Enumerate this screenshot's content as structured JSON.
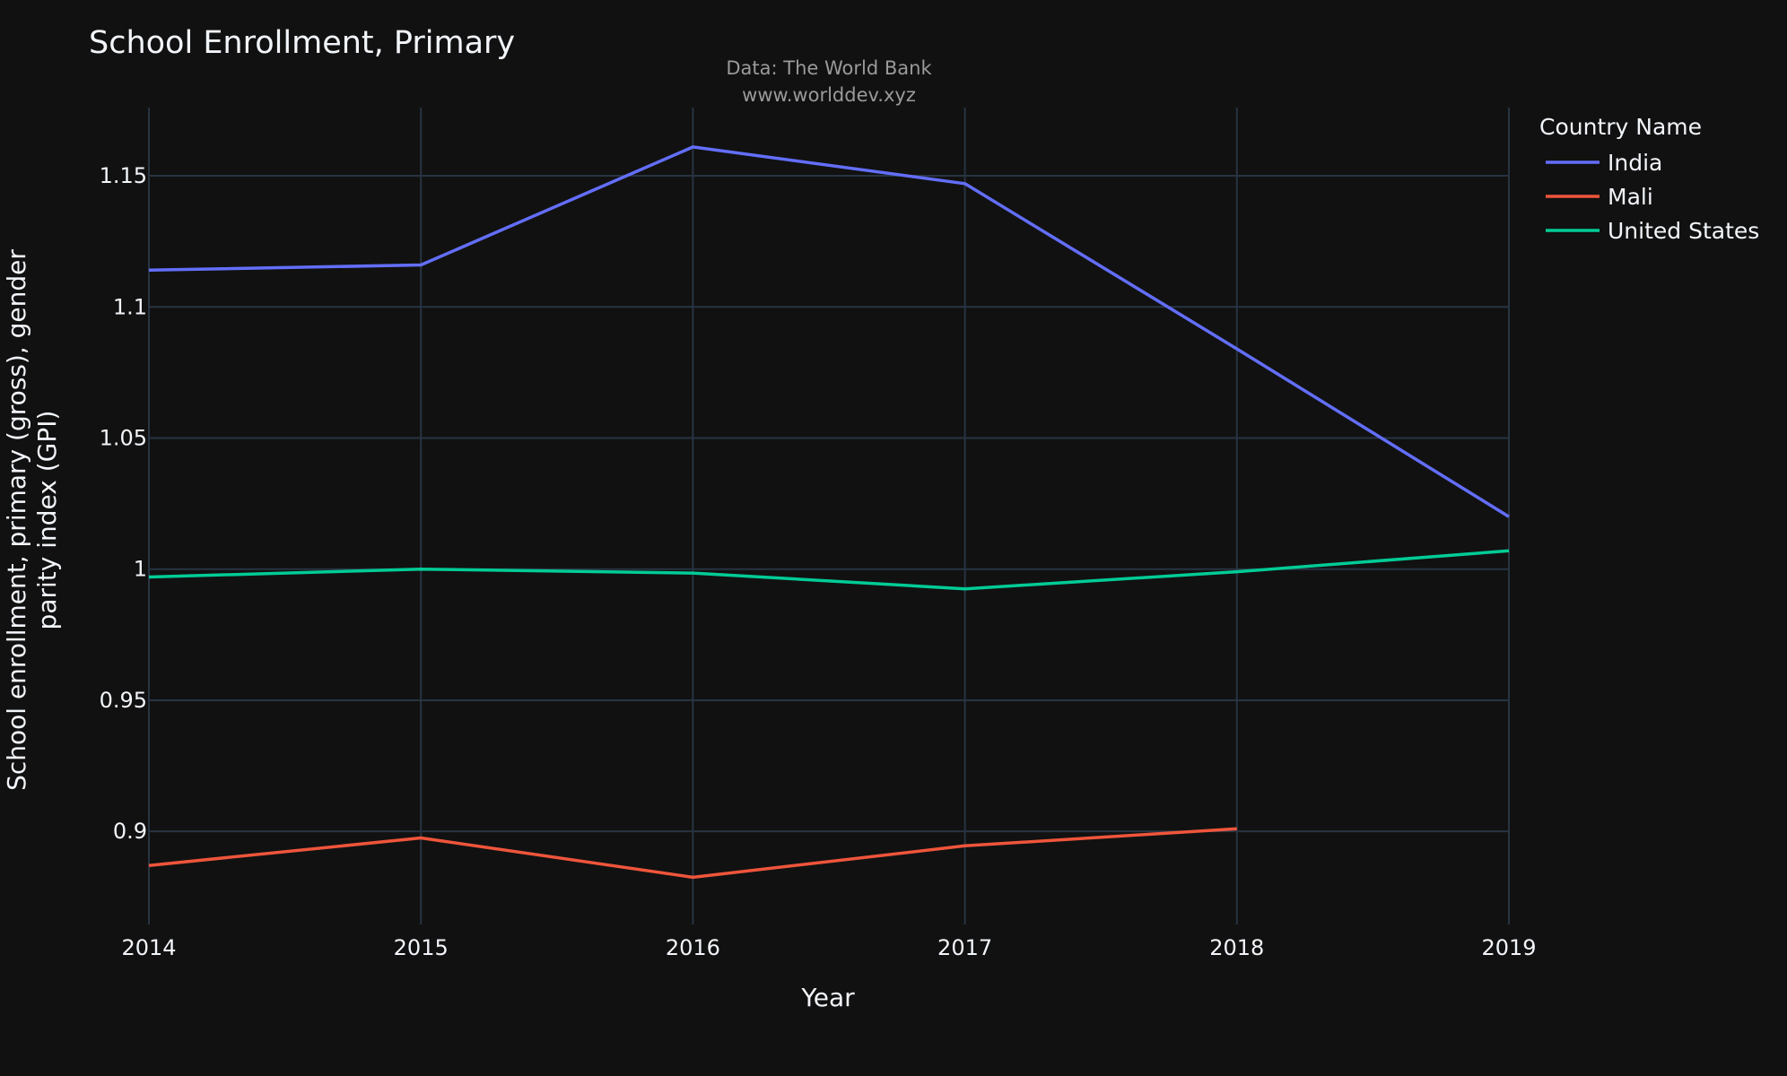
{
  "chart_data": {
    "type": "line",
    "title": "School Enrollment, Primary",
    "subtitle_lines": [
      "Data: The World Bank",
      "www.worlddev.xyz"
    ],
    "xlabel": "Year",
    "ylabel_lines": [
      "School enrollment, primary (gross), gender",
      "parity index (GPI)"
    ],
    "legend_title": "Country Name",
    "legend_position": "top-right",
    "grid": true,
    "xlim": [
      2014,
      2019
    ],
    "ylim": [
      0.8645,
      1.176
    ],
    "x_ticks": [
      2014,
      2015,
      2016,
      2017,
      2018,
      2019
    ],
    "y_ticks": [
      0.9,
      0.95,
      1,
      1.05,
      1.1,
      1.15
    ],
    "y_tick_labels": [
      "0.9",
      "0.95",
      "1",
      "1.05",
      "1.1",
      "1.15"
    ],
    "series": [
      {
        "name": "India",
        "color": "#636efa",
        "x": [
          2014,
          2015,
          2016,
          2017,
          2018,
          2019
        ],
        "y": [
          1.114,
          1.116,
          1.161,
          1.147,
          1.084,
          1.02
        ]
      },
      {
        "name": "Mali",
        "color": "#ef553b",
        "x": [
          2014,
          2015,
          2016,
          2017,
          2018
        ],
        "y": [
          0.887,
          0.8975,
          0.8825,
          0.8945,
          0.901
        ]
      },
      {
        "name": "United States",
        "color": "#00cc96",
        "x": [
          2014,
          2015,
          2016,
          2017,
          2018,
          2019
        ],
        "y": [
          0.997,
          1.0,
          0.9985,
          0.9925,
          0.999,
          1.007
        ]
      }
    ]
  }
}
